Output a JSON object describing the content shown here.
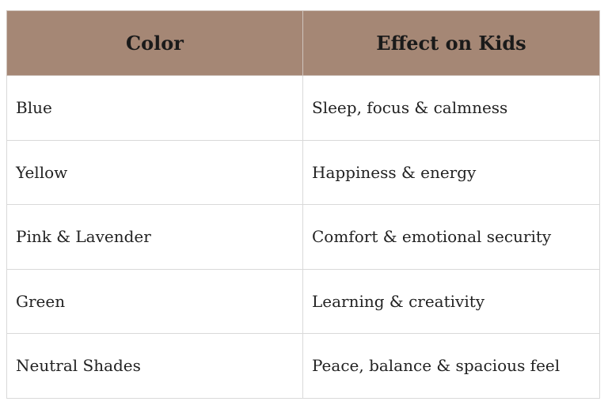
{
  "table": {
    "headers": [
      "Color",
      "Effect on Kids"
    ],
    "rows": [
      [
        "Blue",
        "Sleep, focus & calmness"
      ],
      [
        "Yellow",
        "Happiness & energy"
      ],
      [
        "Pink & Lavender",
        "Comfort & emotional security"
      ],
      [
        "Green",
        "Learning & creativity"
      ],
      [
        "Neutral Shades",
        "Peace, balance & spacious feel"
      ]
    ]
  },
  "colors": {
    "header_background": "#a58775",
    "border": "#d9d9d9"
  }
}
